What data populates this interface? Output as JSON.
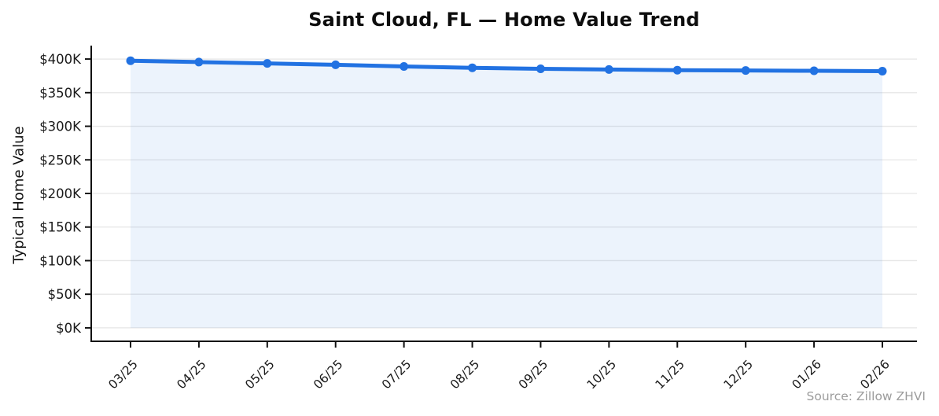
{
  "title": "Saint Cloud, FL — Home Value Trend",
  "source_note": "Source: Zillow ZHVI",
  "colors": {
    "line": "#2272e2",
    "fill": "#2272e2",
    "fill_opacity": 0.085,
    "grid": "#e6e6e6",
    "axis": "#111111",
    "tick_label": "#1a1a1a",
    "title": "#0d0d0d",
    "source": "#9c9c9c",
    "background": "#ffffff"
  },
  "chart_data": {
    "type": "area",
    "title": "Saint Cloud, FL — Home Value Trend",
    "x": [
      "03/25",
      "04/25",
      "05/25",
      "06/25",
      "07/25",
      "08/25",
      "09/25",
      "10/25",
      "11/25",
      "12/25",
      "01/26",
      "02/26"
    ],
    "series": [
      {
        "name": "Typical Home Value",
        "values": [
          397.5,
          395.5,
          393.5,
          391.5,
          389,
          387,
          385.5,
          384.5,
          383.5,
          383,
          382.5,
          382
        ]
      }
    ],
    "values_unit": "USD thousands",
    "xlabel": "",
    "ylabel": "Typical Home Value",
    "ylim": [
      -20,
      420
    ],
    "yticks": [
      0,
      50,
      100,
      150,
      200,
      250,
      300,
      350,
      400
    ],
    "ytick_labels": [
      "$0K",
      "$50K",
      "$100K",
      "$150K",
      "$200K",
      "$250K",
      "$300K",
      "$350K",
      "$400K"
    ],
    "grid": true,
    "legend": false,
    "marker": "circle",
    "annotations": [
      "Source: Zillow ZHVI"
    ]
  }
}
